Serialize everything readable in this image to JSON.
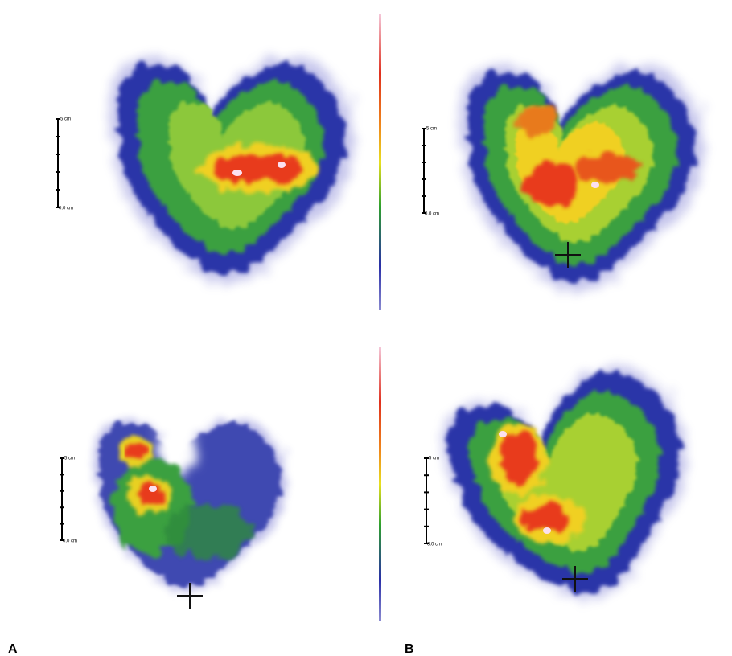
{
  "panels": [
    {
      "scale_top": "5 cm",
      "scale_bottom": "0.0 cm"
    },
    {
      "scale_top": "5 cm",
      "scale_bottom": "0.0 cm"
    },
    {
      "scale_top": "5 cm",
      "scale_bottom": "0.0 cm"
    },
    {
      "scale_top": "5 cm",
      "scale_bottom": "0.0 cm"
    }
  ],
  "labels": [
    "A",
    "B"
  ]
}
